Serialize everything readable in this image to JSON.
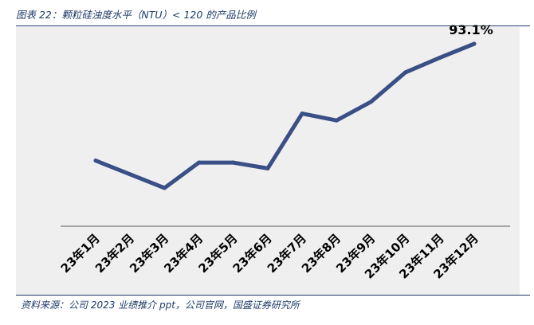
{
  "header": {
    "title": "图表 22：颗粒硅浊度水平（NTU）< 120 的产品比例"
  },
  "footer": {
    "source": "资料来源：公司 2023 业绩推介 ppt，公司官网，国盛证券研究所"
  },
  "colors": {
    "line": "#3a4f86",
    "axis": "#8c8c8c",
    "panel": "#efefef",
    "accent": "#1f3a68"
  },
  "chart_data": {
    "type": "line",
    "title": "",
    "xlabel": "",
    "ylabel": "",
    "categories": [
      "23年1月",
      "23年2月",
      "23年3月",
      "23年4月",
      "23年5月",
      "23年6月",
      "23年7月",
      "23年8月",
      "23年9月",
      "23年10月",
      "23年11月",
      "23年12月"
    ],
    "series": [
      {
        "name": "",
        "values": [
          33.5,
          26.5,
          19.5,
          32.5,
          32.5,
          29.5,
          57.5,
          54.0,
          63.5,
          78.5,
          86.0,
          93.1
        ]
      }
    ],
    "data_labels": [
      {
        "index": 11,
        "text": "93.1%"
      }
    ],
    "ylim": [
      0,
      100
    ],
    "grid": false,
    "legend": "none"
  }
}
